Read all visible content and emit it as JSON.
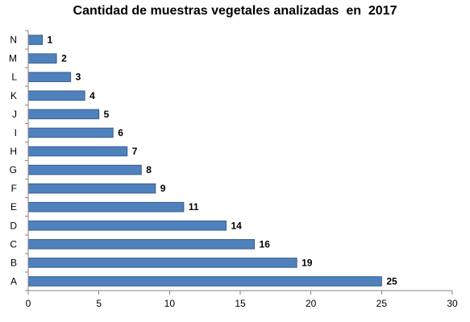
{
  "chart_data": {
    "type": "bar",
    "orientation": "horizontal",
    "title": "Cantidad de muestras vegetales analizadas  en  2017",
    "xlabel": "",
    "ylabel": "",
    "categories": [
      "A",
      "B",
      "C",
      "D",
      "E",
      "F",
      "G",
      "H",
      "I",
      "J",
      "K",
      "L",
      "M",
      "N"
    ],
    "values": [
      25,
      19,
      16,
      14,
      11,
      9,
      8,
      7,
      6,
      5,
      4,
      3,
      2,
      1
    ],
    "xlim": [
      0,
      30
    ],
    "x_ticks": [
      0,
      5,
      10,
      15,
      20,
      25,
      30
    ],
    "grid": false,
    "legend": "none",
    "data_labels": true,
    "bar_color": "#4F81BD",
    "bar_edge_color": "#385D8A"
  }
}
